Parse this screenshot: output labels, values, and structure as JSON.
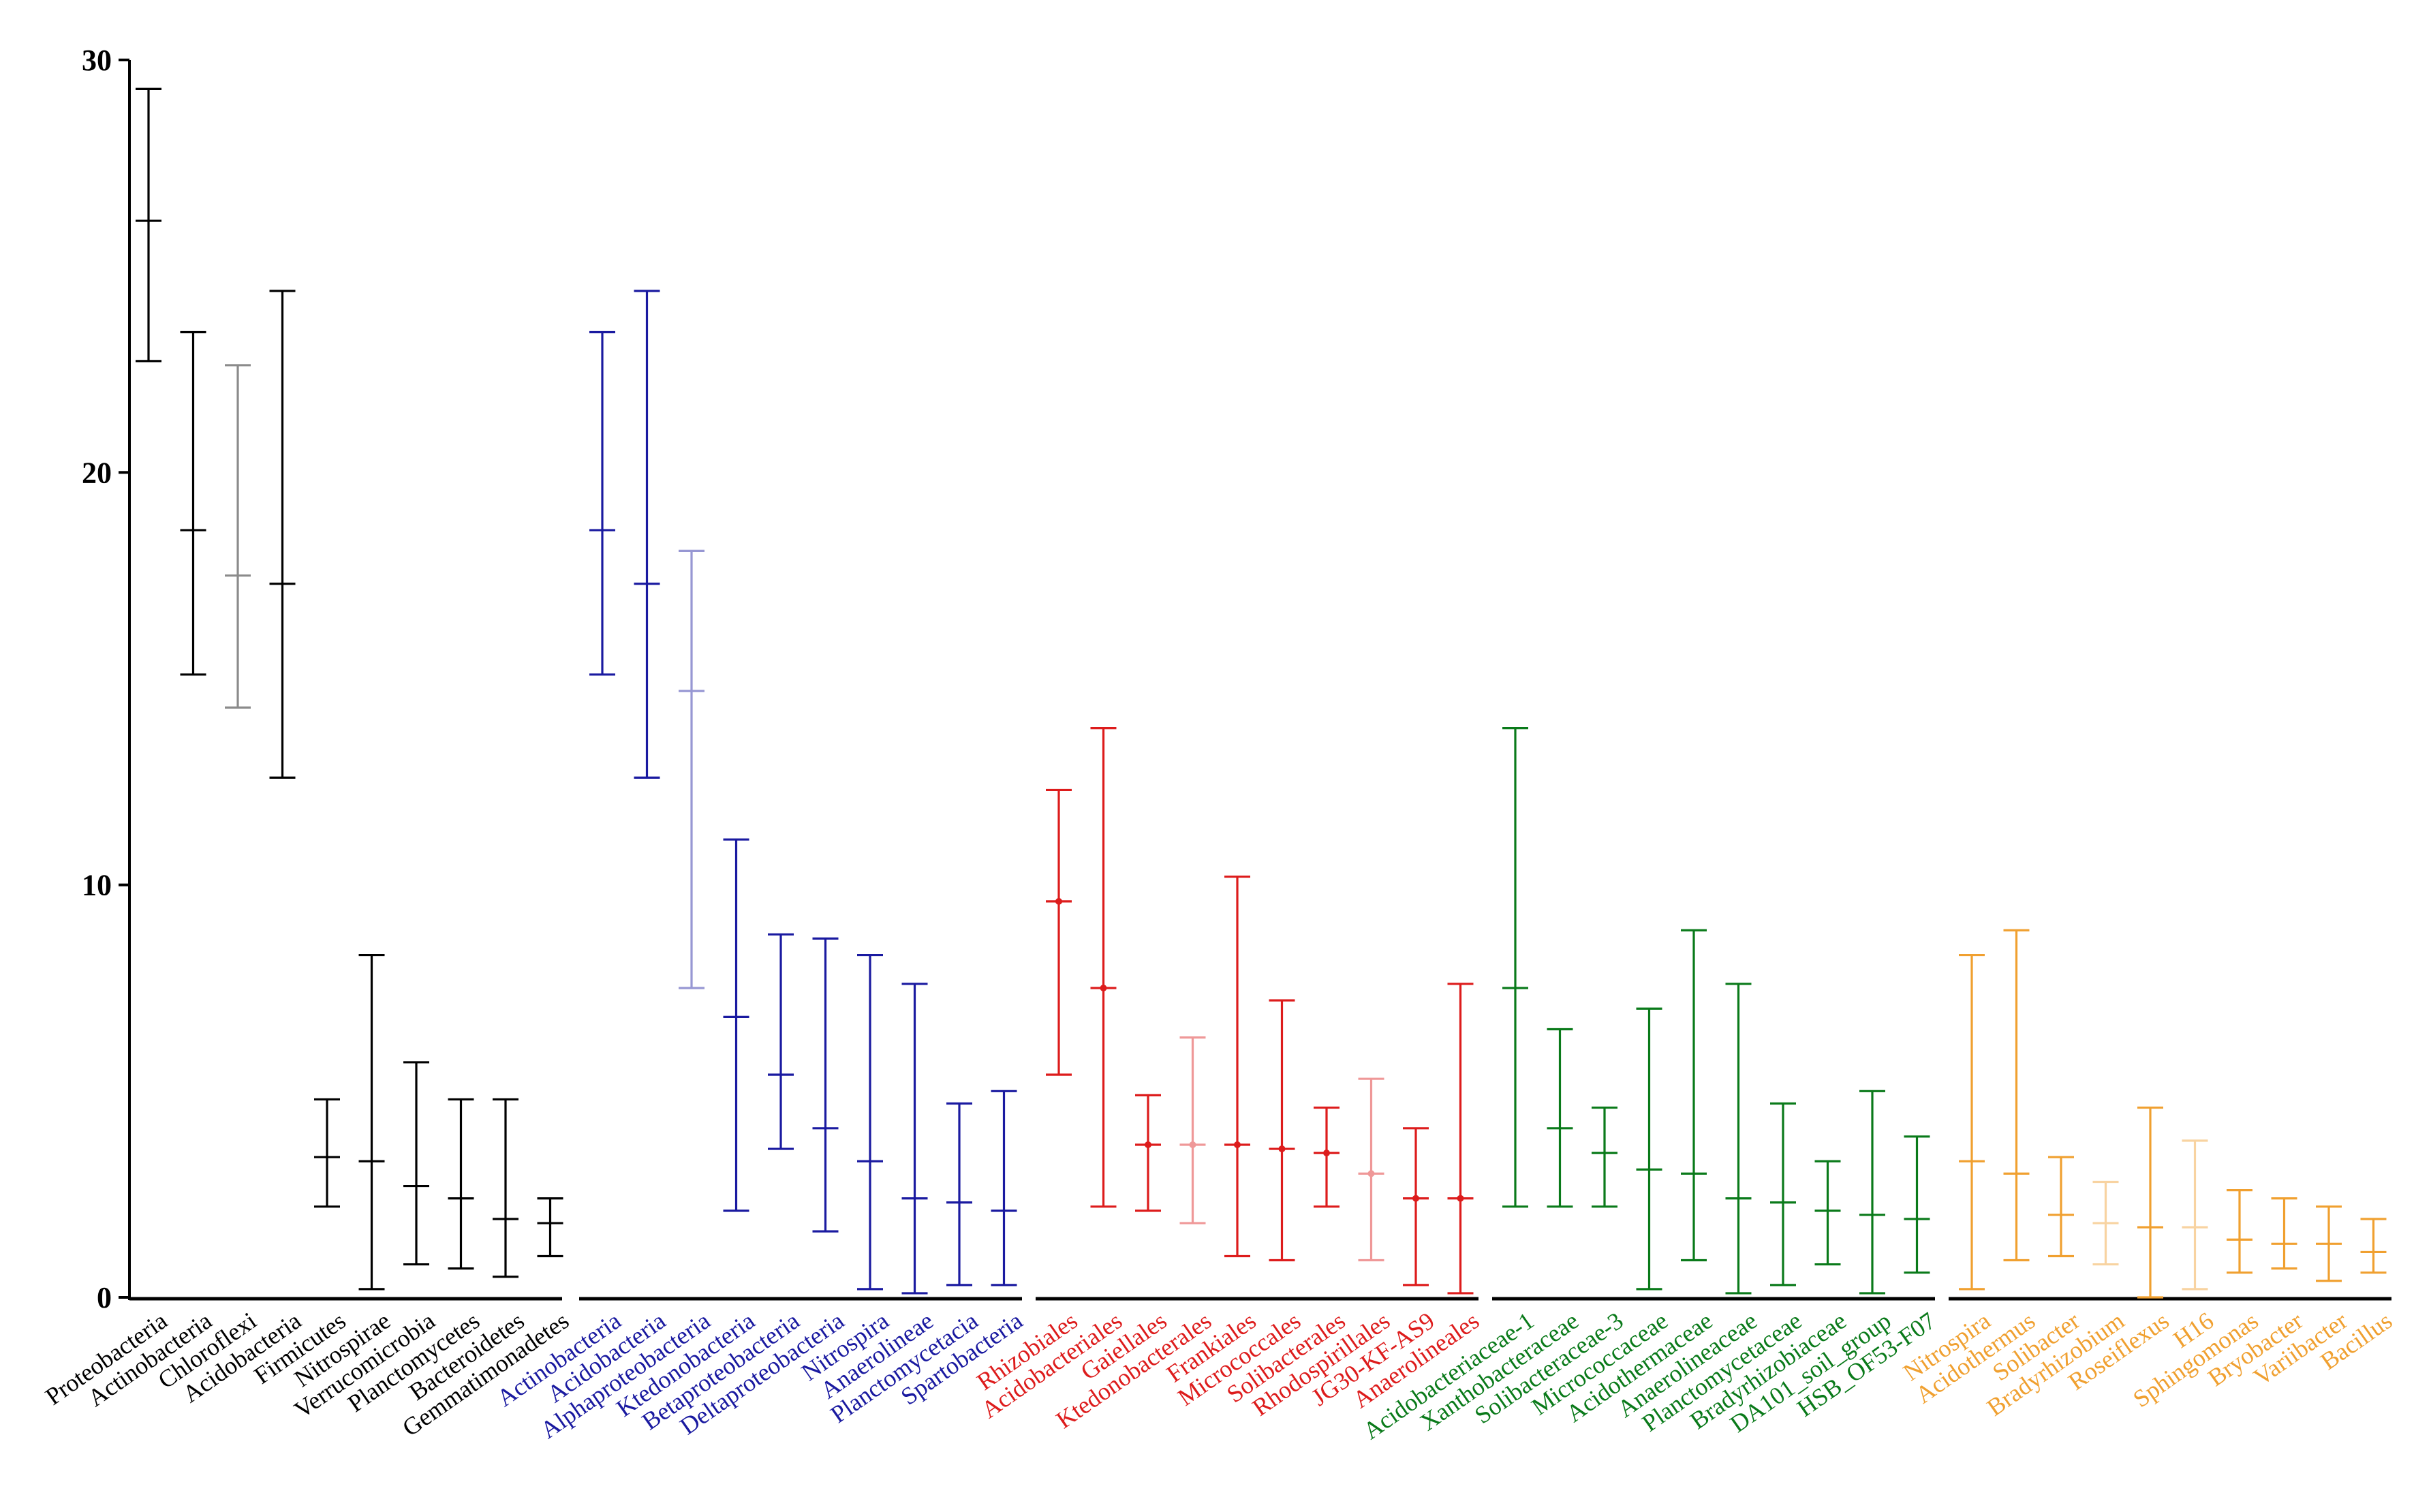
{
  "chart_data": {
    "type": "errorbar",
    "title": "",
    "xlabel": "",
    "ylabel": "",
    "ylim": [
      0,
      30
    ],
    "yticks": [
      0,
      10,
      20,
      30
    ],
    "grid": false,
    "legend": "none",
    "groups": [
      {
        "name": "phylum",
        "color": "#000000",
        "items": [
          {
            "label": "Proteobacteria",
            "mean": 26.1,
            "low": 22.7,
            "high": 29.3
          },
          {
            "label": "Actinobacteria",
            "mean": 18.6,
            "low": 15.1,
            "high": 23.4
          },
          {
            "label": "Chloroflexi",
            "mean": 17.5,
            "low": 14.3,
            "high": 22.6
          },
          {
            "label": "Acidobacteria",
            "mean": 17.3,
            "low": 12.6,
            "high": 24.4
          },
          {
            "label": "Firmicutes",
            "mean": 3.4,
            "low": 2.2,
            "high": 4.8
          },
          {
            "label": "Nitrospirae",
            "mean": 3.3,
            "low": 0.2,
            "high": 8.3
          },
          {
            "label": "Verrucomicrobia",
            "mean": 2.7,
            "low": 0.8,
            "high": 5.7
          },
          {
            "label": "Planctomycetes",
            "mean": 2.4,
            "low": 0.7,
            "high": 4.8
          },
          {
            "label": "Bacteroidetes",
            "mean": 1.9,
            "low": 0.5,
            "high": 4.8
          },
          {
            "label": "Gemmatimonadetes",
            "mean": 1.8,
            "low": 1.0,
            "high": 2.4
          }
        ]
      },
      {
        "name": "class",
        "color": "#1a1aa0",
        "items": [
          {
            "label": "Actinobacteria",
            "mean": 18.6,
            "low": 15.1,
            "high": 23.4
          },
          {
            "label": "Acidobacteria",
            "mean": 17.3,
            "low": 12.6,
            "high": 24.4
          },
          {
            "label": "Alphaproteobacteria",
            "mean": 14.7,
            "low": 7.5,
            "high": 18.1
          },
          {
            "label": "Ktedonobacteria",
            "mean": 6.8,
            "low": 2.1,
            "high": 11.1
          },
          {
            "label": "Betaproteobacteria",
            "mean": 5.4,
            "low": 3.6,
            "high": 8.8
          },
          {
            "label": "Deltaproteobacteria",
            "mean": 4.1,
            "low": 1.6,
            "high": 8.7
          },
          {
            "label": "Nitrospira",
            "mean": 3.3,
            "low": 0.2,
            "high": 8.3
          },
          {
            "label": "Anaerolineae",
            "mean": 2.4,
            "low": 0.1,
            "high": 7.6
          },
          {
            "label": "Planctomycetacia",
            "mean": 2.3,
            "low": 0.3,
            "high": 4.7
          },
          {
            "label": "Spartobacteria",
            "mean": 2.1,
            "low": 0.3,
            "high": 5.0
          }
        ]
      },
      {
        "name": "order",
        "color": "#dd1c1c",
        "items": [
          {
            "label": "Rhizobiales",
            "mean": 9.6,
            "low": 5.4,
            "high": 12.3
          },
          {
            "label": "Acidobacteriales",
            "mean": 7.5,
            "low": 2.2,
            "high": 13.8
          },
          {
            "label": "Gaiellales",
            "mean": 3.7,
            "low": 2.1,
            "high": 4.9
          },
          {
            "label": "Ktedonobacterales",
            "mean": 3.7,
            "low": 1.8,
            "high": 6.3
          },
          {
            "label": "Frankiales",
            "mean": 3.7,
            "low": 1.0,
            "high": 10.2
          },
          {
            "label": "Micrococcales",
            "mean": 3.6,
            "low": 0.9,
            "high": 7.2
          },
          {
            "label": "Solibacterales",
            "mean": 3.5,
            "low": 2.2,
            "high": 4.6
          },
          {
            "label": "Rhodospirillales",
            "mean": 3.0,
            "low": 0.9,
            "high": 5.3
          },
          {
            "label": "JG30-KF-AS9",
            "mean": 2.4,
            "low": 0.3,
            "high": 4.1
          },
          {
            "label": "Anaerolineales",
            "mean": 2.4,
            "low": 0.1,
            "high": 7.6
          }
        ]
      },
      {
        "name": "family",
        "color": "#0a7a1a",
        "items": [
          {
            "label": "Acidobacteriaceae-1",
            "mean": 7.5,
            "low": 2.2,
            "high": 13.8
          },
          {
            "label": "Xanthobacteraceae",
            "mean": 4.1,
            "low": 2.2,
            "high": 6.5
          },
          {
            "label": "Solibacteraceae-3",
            "mean": 3.5,
            "low": 2.2,
            "high": 4.6
          },
          {
            "label": "Micrococcaceae",
            "mean": 3.1,
            "low": 0.2,
            "high": 7.0
          },
          {
            "label": "Acidothermaceae",
            "mean": 3.0,
            "low": 0.9,
            "high": 8.9
          },
          {
            "label": "Anaerolineaceae",
            "mean": 2.4,
            "low": 0.1,
            "high": 7.6
          },
          {
            "label": "Planctomycetaceae",
            "mean": 2.3,
            "low": 0.3,
            "high": 4.7
          },
          {
            "label": "Bradyrhizobiaceae",
            "mean": 2.1,
            "low": 0.8,
            "high": 3.3
          },
          {
            "label": "DA101_soil_group",
            "mean": 2.0,
            "low": 0.1,
            "high": 5.0
          },
          {
            "label": "HSB_OF53-F07",
            "mean": 1.9,
            "low": 0.6,
            "high": 3.9
          }
        ]
      },
      {
        "name": "genus",
        "color": "#f0a030",
        "items": [
          {
            "label": "Nitrospira",
            "mean": 3.3,
            "low": 0.2,
            "high": 8.3
          },
          {
            "label": "Acidothermus",
            "mean": 3.0,
            "low": 0.9,
            "high": 8.9
          },
          {
            "label": "Solibacter",
            "mean": 2.0,
            "low": 1.0,
            "high": 3.4
          },
          {
            "label": "Bradyrhizobium",
            "mean": 1.8,
            "low": 0.8,
            "high": 2.8
          },
          {
            "label": "Roseiflexus",
            "mean": 1.7,
            "low": 0.0,
            "high": 4.6
          },
          {
            "label": "H16",
            "mean": 1.7,
            "low": 0.2,
            "high": 3.8
          },
          {
            "label": "Sphingomonas",
            "mean": 1.4,
            "low": 0.6,
            "high": 2.6
          },
          {
            "label": "Bryobacter",
            "mean": 1.3,
            "low": 0.7,
            "high": 2.4
          },
          {
            "label": "Variibacter",
            "mean": 1.3,
            "low": 0.4,
            "high": 2.2
          },
          {
            "label": "Bacillus",
            "mean": 1.1,
            "low": 0.6,
            "high": 1.9
          }
        ]
      }
    ]
  }
}
